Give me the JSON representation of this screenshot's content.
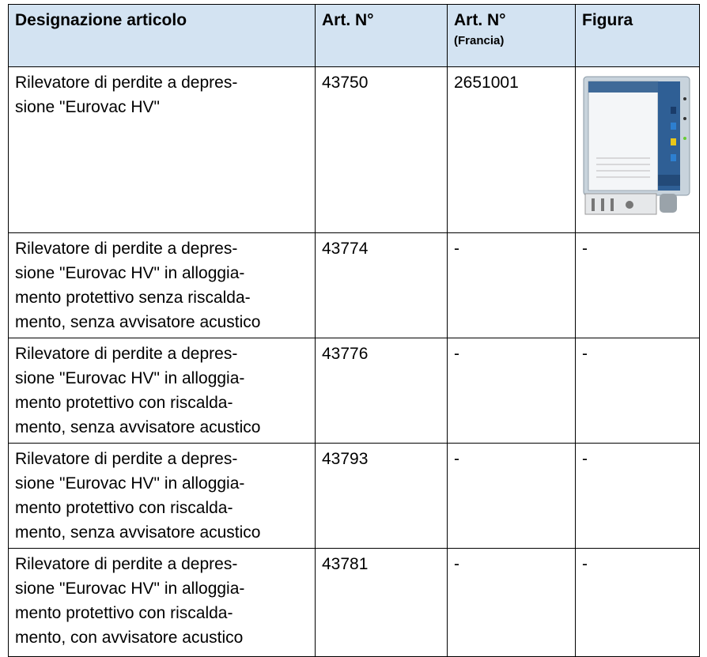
{
  "table": {
    "header": {
      "designation": "Designazione articolo",
      "art": "Art. N°",
      "art_fr": "Art. N°",
      "art_fr_note": "(Francia)",
      "figure": "Figura"
    },
    "rows": [
      {
        "designation": [
          "Rilevatore di perdite a depres-",
          "sione \"Eurovac HV\""
        ],
        "art": "43750",
        "art_fr": "2651001",
        "figure": null
      },
      {
        "designation": [
          "Rilevatore di perdite a depres-",
          "sione \"Eurovac HV\" in alloggia-",
          "mento protettivo senza riscalda-",
          "mento, senza avvisatore acustico"
        ],
        "art": "43774",
        "art_fr": "-",
        "figure": "-"
      },
      {
        "designation": [
          "Rilevatore di perdite a depres-",
          "sione \"Eurovac HV\" in alloggia-",
          "mento protettivo con riscalda-",
          "mento, senza avvisatore acustico"
        ],
        "art": "43776",
        "art_fr": "-",
        "figure": "-"
      },
      {
        "designation": [
          "Rilevatore di perdite a depres-",
          "sione \"Eurovac HV\" in alloggia-",
          "mento protettivo con riscalda-",
          "mento, senza avvisatore acustico"
        ],
        "art": "43793",
        "art_fr": "-",
        "figure": "-"
      },
      {
        "designation": [
          "Rilevatore di perdite a depres-",
          "sione \"Eurovac HV\" in alloggia-",
          "mento protettivo con riscalda-",
          "mento, con avvisatore acustico"
        ],
        "art": "43781",
        "art_fr": "-",
        "figure": "-"
      }
    ]
  }
}
